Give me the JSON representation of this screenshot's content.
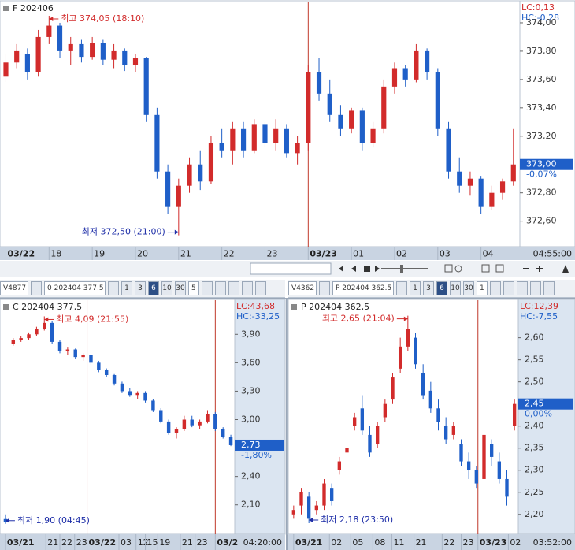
{
  "chart_data": [
    {
      "type": "candlestick",
      "title": "F 202406",
      "lc": "LC:0,13",
      "hc": "HC:-0,28",
      "time": "04:55:00",
      "up_color": "#d22b2b",
      "down_color": "#1f5fc8",
      "xlim": [
        -0.4,
        47.6
      ],
      "ylim": [
        372.42,
        374.15
      ],
      "xticks": [
        {
          "value": 0,
          "label": "03/22"
        },
        {
          "value": 4,
          "label": "18"
        },
        {
          "value": 8,
          "label": "19"
        },
        {
          "value": 12,
          "label": "20"
        },
        {
          "value": 16,
          "label": "21"
        },
        {
          "value": 20,
          "label": "22"
        },
        {
          "value": 24,
          "label": "23"
        },
        {
          "value": 28,
          "label": "03/23"
        },
        {
          "value": 32,
          "label": "01"
        },
        {
          "value": 36,
          "label": "02"
        },
        {
          "value": 40,
          "label": "03"
        },
        {
          "value": 44,
          "label": "04"
        }
      ],
      "yticks": [
        {
          "value": 372.6,
          "label": "372,60"
        },
        {
          "value": 372.8,
          "label": "372,80"
        },
        {
          "value": 373.2,
          "label": "373,20"
        },
        {
          "value": 373.4,
          "label": "373,40"
        },
        {
          "value": 373.6,
          "label": "373,60"
        },
        {
          "value": 373.8,
          "label": "373,80"
        },
        {
          "value": 374.0,
          "label": "374,00"
        }
      ],
      "last": {
        "value": 373.0,
        "label": "373,00"
      },
      "last_change": "-0,07%",
      "annotations": [
        {
          "text": "최고 374,05 (18:10)",
          "x": 4,
          "y": 374.05,
          "arrow": "left"
        },
        {
          "text": "최저 372,50 (21:00)",
          "x": 16,
          "y": 372.5,
          "arrow": "right"
        }
      ],
      "open": [
        373.62,
        373.72,
        373.78,
        373.65,
        373.9,
        373.98,
        373.8,
        373.85,
        373.76,
        373.86,
        373.74,
        373.8,
        373.7,
        373.75,
        373.35,
        372.95,
        372.7,
        372.85,
        373.0,
        372.88,
        373.15,
        373.1,
        373.25,
        373.1,
        373.28,
        373.15,
        373.25,
        373.08,
        373.15,
        373.65,
        373.5,
        373.35,
        373.25,
        373.38,
        373.15,
        373.25,
        373.55,
        373.68,
        373.6,
        373.8,
        373.65,
        373.25,
        372.95,
        372.85,
        372.9,
        372.7,
        372.8,
        372.88
      ],
      "high": [
        373.78,
        373.85,
        373.82,
        373.95,
        374.05,
        374.0,
        373.9,
        373.88,
        373.9,
        373.88,
        373.85,
        373.82,
        373.78,
        373.76,
        373.4,
        373.0,
        372.9,
        373.05,
        373.1,
        373.2,
        373.25,
        373.3,
        373.3,
        373.32,
        373.3,
        373.32,
        373.28,
        373.2,
        373.7,
        373.75,
        373.6,
        373.42,
        373.4,
        373.4,
        373.3,
        373.6,
        373.72,
        373.7,
        373.85,
        373.82,
        373.68,
        373.3,
        373.05,
        372.95,
        372.92,
        372.85,
        372.9,
        373.25
      ],
      "low": [
        373.58,
        373.68,
        373.6,
        373.62,
        373.85,
        373.75,
        373.7,
        373.72,
        373.74,
        373.7,
        373.68,
        373.66,
        373.65,
        373.3,
        372.9,
        372.65,
        372.5,
        372.8,
        372.82,
        372.86,
        373.05,
        373.0,
        373.05,
        373.08,
        373.12,
        373.1,
        373.05,
        373.0,
        373.1,
        373.45,
        373.3,
        373.2,
        373.22,
        373.1,
        373.12,
        373.22,
        373.5,
        373.55,
        373.58,
        373.6,
        373.2,
        372.9,
        372.8,
        372.78,
        372.65,
        372.68,
        372.75,
        372.85
      ],
      "close": [
        373.72,
        373.8,
        373.65,
        373.9,
        373.98,
        373.8,
        373.85,
        373.76,
        373.86,
        373.74,
        373.8,
        373.7,
        373.75,
        373.35,
        372.95,
        372.7,
        372.85,
        373.0,
        372.88,
        373.15,
        373.1,
        373.25,
        373.1,
        373.28,
        373.15,
        373.25,
        373.08,
        373.15,
        373.65,
        373.5,
        373.35,
        373.25,
        373.38,
        373.15,
        373.25,
        373.55,
        373.68,
        373.6,
        373.8,
        373.65,
        373.25,
        372.95,
        372.85,
        372.9,
        372.7,
        372.8,
        372.88,
        373.0
      ]
    },
    {
      "type": "candlestick",
      "title": "C 202404 377,5",
      "lc": "LC:43,68",
      "hc": "HC:-33,25",
      "time": "04:20:00",
      "up_color": "#d22b2b",
      "down_color": "#1f5fc8",
      "xlim": [
        -0.5,
        29.5
      ],
      "ylim": [
        1.79,
        4.26
      ],
      "xticks": [
        {
          "value": 0,
          "label": "03/21"
        },
        {
          "value": 5.2,
          "label": "21"
        },
        {
          "value": 7,
          "label": "22"
        },
        {
          "value": 8.9,
          "label": "23"
        },
        {
          "value": 10.5,
          "label": "03/22"
        },
        {
          "value": 14.6,
          "label": "03"
        },
        {
          "value": 16.8,
          "label": "12"
        },
        {
          "value": 18,
          "label": "15"
        },
        {
          "value": 19.6,
          "label": "19"
        },
        {
          "value": 22.5,
          "label": "21"
        },
        {
          "value": 24.4,
          "label": "23"
        },
        {
          "value": 27,
          "label": "03/2"
        }
      ],
      "yticks": [
        {
          "value": 2.1,
          "label": "2,10"
        },
        {
          "value": 2.4,
          "label": "2,40"
        },
        {
          "value": 3.0,
          "label": "3,00"
        },
        {
          "value": 3.3,
          "label": "3,30"
        },
        {
          "value": 3.6,
          "label": "3,60"
        },
        {
          "value": 3.9,
          "label": "3,90"
        }
      ],
      "last": {
        "value": 2.73,
        "label": "2,73"
      },
      "last_change": "-1,80%",
      "annotations": [
        {
          "text": "최고 4,09 (21:55)",
          "x": 5,
          "y": 4.09,
          "arrow": "left"
        },
        {
          "text": "최저 1,90 (04:45)",
          "x": 0,
          "y": 1.9,
          "arrow": "left"
        }
      ],
      "open": [
        1.95,
        3.8,
        3.84,
        3.86,
        3.9,
        3.96,
        4.02,
        3.82,
        3.72,
        3.74,
        3.66,
        3.68,
        3.6,
        3.52,
        3.47,
        3.38,
        3.3,
        3.26,
        3.28,
        3.2,
        3.1,
        2.98,
        2.86,
        2.9,
        3.0,
        2.94,
        2.98,
        3.06,
        2.9,
        2.82
      ],
      "high": [
        2.0,
        3.86,
        3.88,
        3.92,
        3.98,
        4.09,
        4.04,
        3.84,
        3.76,
        3.75,
        3.7,
        3.69,
        3.62,
        3.54,
        3.48,
        3.4,
        3.33,
        3.3,
        3.3,
        3.22,
        3.12,
        3.0,
        2.92,
        3.04,
        3.04,
        3.0,
        3.1,
        3.08,
        2.92,
        2.84
      ],
      "low": [
        1.9,
        3.78,
        3.82,
        3.84,
        3.88,
        3.94,
        3.8,
        3.7,
        3.68,
        3.64,
        3.62,
        3.58,
        3.5,
        3.45,
        3.36,
        3.28,
        3.24,
        3.22,
        3.18,
        3.08,
        2.96,
        2.84,
        2.8,
        2.88,
        2.92,
        2.9,
        2.96,
        2.88,
        2.8,
        2.72
      ],
      "close": [
        1.92,
        3.84,
        3.86,
        3.9,
        3.96,
        4.02,
        3.82,
        3.72,
        3.74,
        3.66,
        3.68,
        3.6,
        3.52,
        3.47,
        3.38,
        3.3,
        3.26,
        3.28,
        3.2,
        3.1,
        2.98,
        2.86,
        2.9,
        3.0,
        2.94,
        2.98,
        3.06,
        2.9,
        2.82,
        2.73
      ]
    },
    {
      "type": "candlestick",
      "title": "P 202404 362,5",
      "lc": "LC:12,39",
      "hc": "HC:-7,55",
      "time": "03:52:00",
      "up_color": "#d22b2b",
      "down_color": "#1f5fc8",
      "xlim": [
        -0.5,
        29.5
      ],
      "ylim": [
        2.155,
        2.685
      ],
      "xticks": [
        {
          "value": 0,
          "label": "03/21"
        },
        {
          "value": 4.7,
          "label": "02"
        },
        {
          "value": 7.5,
          "label": "05"
        },
        {
          "value": 10.4,
          "label": "08"
        },
        {
          "value": 12.9,
          "label": "11"
        },
        {
          "value": 15.8,
          "label": "21"
        },
        {
          "value": 19.5,
          "label": "22"
        },
        {
          "value": 22,
          "label": "23"
        },
        {
          "value": 24.2,
          "label": "03/23"
        },
        {
          "value": 28.2,
          "label": "02"
        }
      ],
      "yticks": [
        {
          "value": 2.2,
          "label": "2,20"
        },
        {
          "value": 2.25,
          "label": "2,25"
        },
        {
          "value": 2.3,
          "label": "2,30"
        },
        {
          "value": 2.35,
          "label": "2,35"
        },
        {
          "value": 2.4,
          "label": "2,40"
        },
        {
          "value": 2.5,
          "label": "2,50"
        },
        {
          "value": 2.55,
          "label": "2,55"
        },
        {
          "value": 2.6,
          "label": "2,60"
        }
      ],
      "last": {
        "value": 2.45,
        "label": "2,45"
      },
      "last_change": "0,00%",
      "annotations": [
        {
          "text": "최고 2,65 (21:04)",
          "x": 15,
          "y": 2.65,
          "arrow": "right"
        },
        {
          "text": "최저 2,18 (23:50)",
          "x": 2,
          "y": 2.18,
          "arrow": "left"
        }
      ],
      "open": [
        2.2,
        2.22,
        2.24,
        2.21,
        2.22,
        2.26,
        2.3,
        2.34,
        2.4,
        2.44,
        2.38,
        2.36,
        2.42,
        2.46,
        2.53,
        2.58,
        2.6,
        2.52,
        2.48,
        2.44,
        2.4,
        2.38,
        2.36,
        2.32,
        2.3,
        2.28,
        2.36,
        2.32,
        2.28,
        2.4
      ],
      "high": [
        2.22,
        2.26,
        2.25,
        2.23,
        2.28,
        2.27,
        2.33,
        2.36,
        2.43,
        2.47,
        2.4,
        2.41,
        2.46,
        2.52,
        2.6,
        2.65,
        2.61,
        2.54,
        2.5,
        2.46,
        2.42,
        2.41,
        2.37,
        2.34,
        2.31,
        2.4,
        2.37,
        2.34,
        2.3,
        2.46
      ],
      "low": [
        2.19,
        2.2,
        2.18,
        2.2,
        2.21,
        2.22,
        2.29,
        2.33,
        2.39,
        2.38,
        2.33,
        2.35,
        2.41,
        2.45,
        2.52,
        2.57,
        2.53,
        2.46,
        2.43,
        2.39,
        2.36,
        2.37,
        2.31,
        2.28,
        2.26,
        2.27,
        2.31,
        2.27,
        2.22,
        2.39
      ],
      "close": [
        2.21,
        2.25,
        2.19,
        2.22,
        2.27,
        2.23,
        2.32,
        2.35,
        2.42,
        2.39,
        2.34,
        2.4,
        2.45,
        2.51,
        2.58,
        2.62,
        2.54,
        2.47,
        2.44,
        2.41,
        2.37,
        2.4,
        2.32,
        2.3,
        2.27,
        2.38,
        2.33,
        2.28,
        2.24,
        2.45
      ]
    }
  ],
  "toolbars": [
    {
      "code": "V4877",
      "symbol": "0 202404 377.5",
      "periods": [
        "1",
        "3",
        "6",
        "10",
        "30"
      ],
      "count": "5"
    },
    {
      "code": "V4362",
      "symbol": "P 202404 362.5",
      "periods": [
        "1",
        "3",
        "6",
        "10",
        "30"
      ],
      "count": "1"
    }
  ]
}
